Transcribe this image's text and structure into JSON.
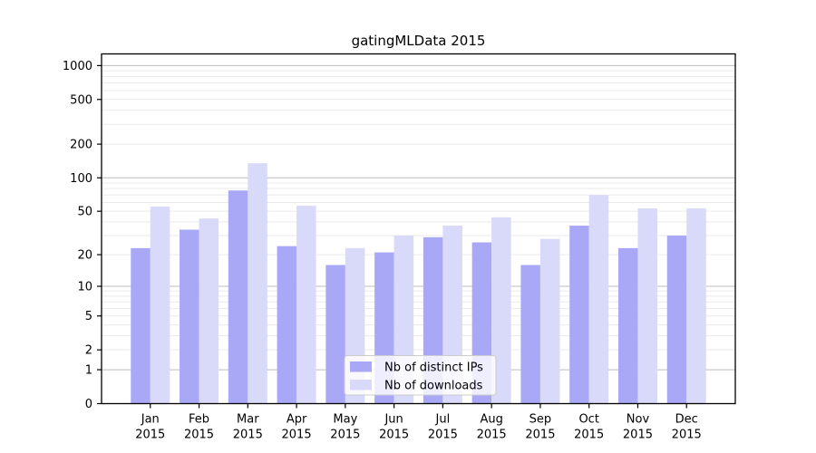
{
  "chart_data": {
    "type": "bar",
    "title": "gatingMLData 2015",
    "categories": [
      "Jan",
      "Feb",
      "Mar",
      "Apr",
      "May",
      "Jun",
      "Jul",
      "Aug",
      "Sep",
      "Oct",
      "Nov",
      "Dec"
    ],
    "category_year": "2015",
    "series": [
      {
        "name": "Nb of distinct IPs",
        "color": "#a8a8f7",
        "values": [
          23,
          34,
          77,
          24,
          16,
          21,
          29,
          26,
          16,
          37,
          23,
          30
        ]
      },
      {
        "name": "Nb of downloads",
        "color": "#d9d9fa",
        "values": [
          55,
          43,
          135,
          56,
          23,
          30,
          37,
          44,
          28,
          70,
          53,
          53
        ]
      }
    ],
    "xlabel": "",
    "ylabel": "",
    "yscale": "log1p",
    "ylim": [
      0,
      1270
    ],
    "yticks": [
      0,
      1,
      2,
      5,
      10,
      20,
      50,
      100,
      200,
      500,
      1000
    ],
    "grid": {
      "major_lines": [
        1,
        10,
        100,
        1000
      ],
      "minor_subs": [
        2,
        3,
        4,
        5,
        6,
        7,
        8,
        9
      ],
      "minor_decades": [
        1,
        10,
        100
      ]
    },
    "legend": {
      "position": "lower-center"
    }
  },
  "colors": {
    "background": "#ffffff",
    "spine": "#000000",
    "major_grid": "#bcbcbc",
    "minor_grid": "#eaeaea",
    "legend_border": "#cccccc",
    "legend_bg_opacity": 0.8,
    "text": "#000000"
  }
}
